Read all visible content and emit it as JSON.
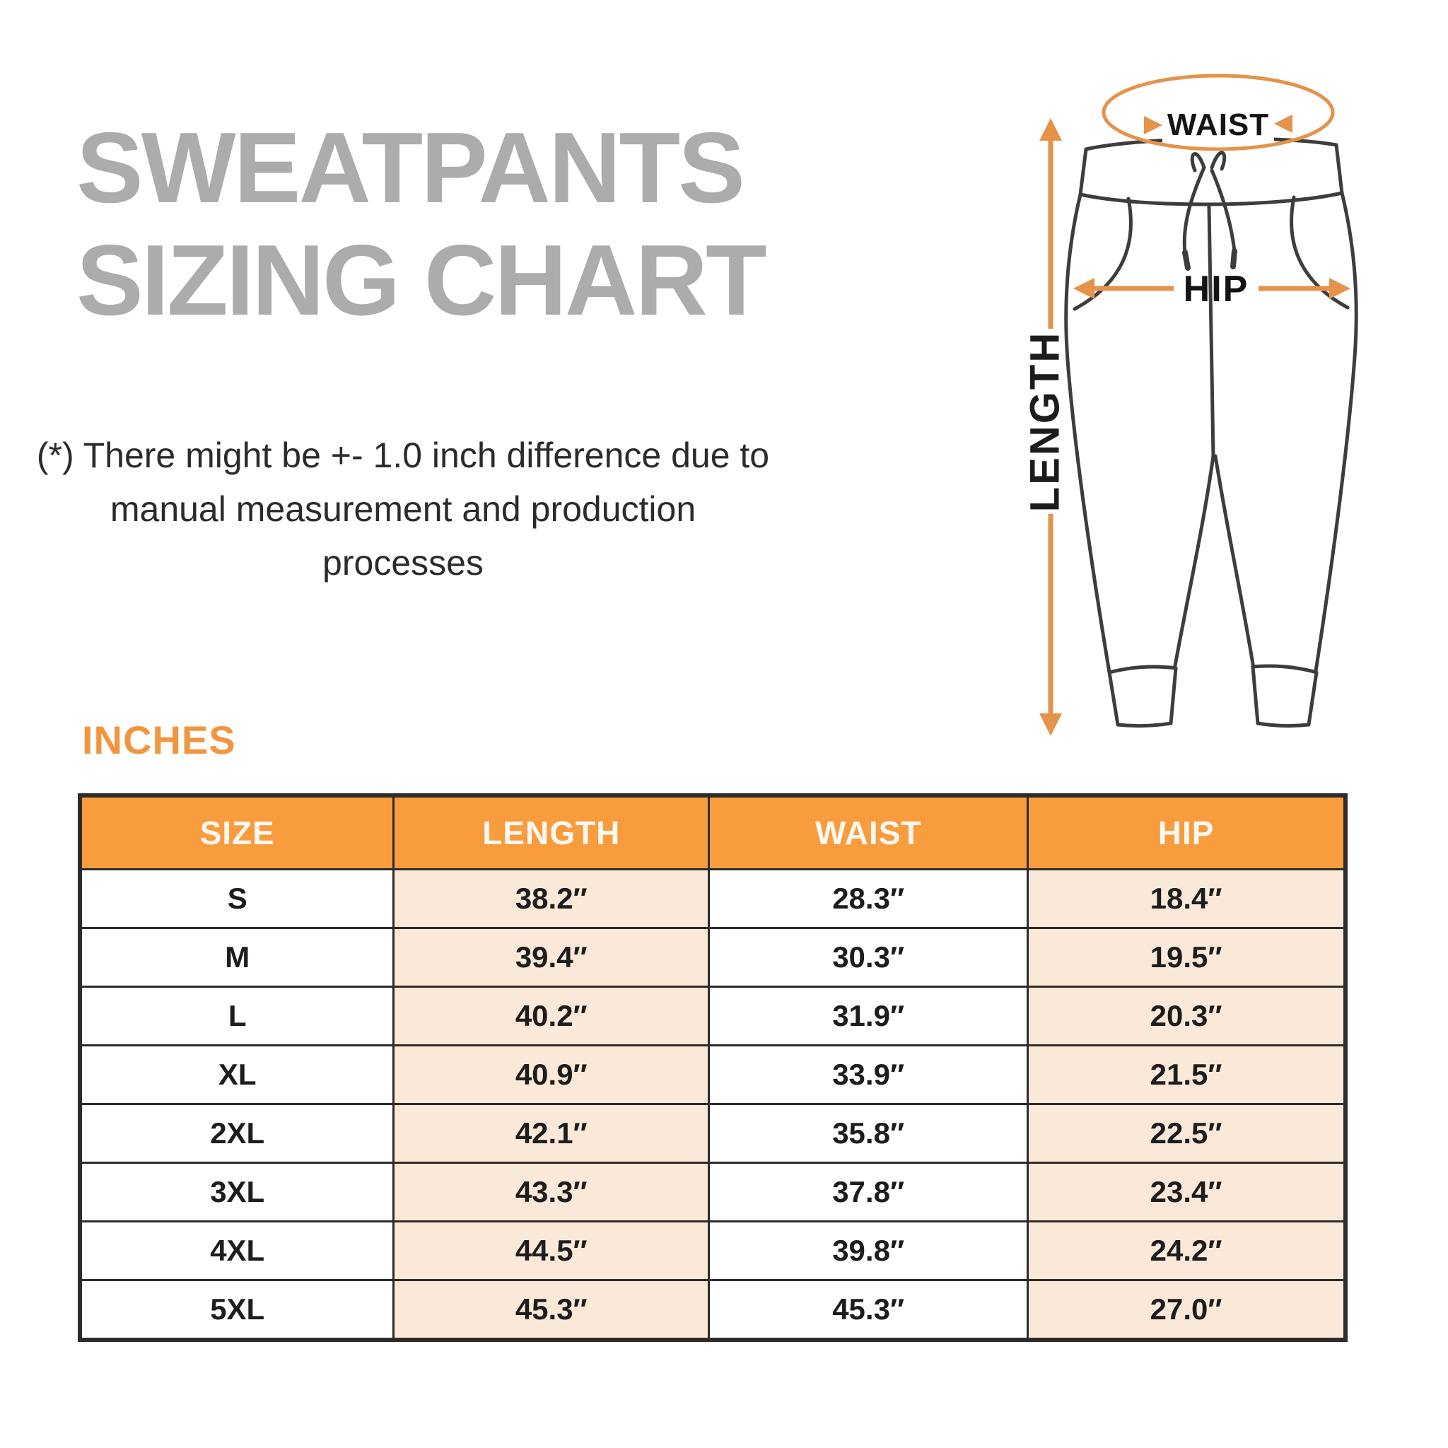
{
  "title": {
    "line1": "SWEATPANTS",
    "line2": "SIZING CHART",
    "color": "#ACACAC"
  },
  "disclaimer": {
    "line1": "(*) There might be +- 1.0 inch difference due to",
    "line2": "manual measurement and production processes"
  },
  "diagram": {
    "waist_label": "WAIST",
    "hip_label": "HIP",
    "length_label": "LENGTH",
    "arrow_color": "#E5924B",
    "outline_color": "#3D3D3D"
  },
  "units_label": "INCHES",
  "table": {
    "headers": [
      "SIZE",
      "LENGTH",
      "WAIST",
      "HIP"
    ],
    "header_bg": "#F89C3D",
    "alt_cell_bg": "#FAE8D9",
    "rows": [
      {
        "size": "S",
        "length": "38.2″",
        "waist": "28.3″",
        "hip": "18.4″"
      },
      {
        "size": "M",
        "length": "39.4″",
        "waist": "30.3″",
        "hip": "19.5″"
      },
      {
        "size": "L",
        "length": "40.2″",
        "waist": "31.9″",
        "hip": "20.3″"
      },
      {
        "size": "XL",
        "length": "40.9″",
        "waist": "33.9″",
        "hip": "21.5″"
      },
      {
        "size": "2XL",
        "length": "42.1″",
        "waist": "35.8″",
        "hip": "22.5″"
      },
      {
        "size": "3XL",
        "length": "43.3″",
        "waist": "37.8″",
        "hip": "23.4″"
      },
      {
        "size": "4XL",
        "length": "44.5″",
        "waist": "39.8″",
        "hip": "24.2″"
      },
      {
        "size": "5XL",
        "length": "45.3″",
        "waist": "45.3″",
        "hip": "27.0″"
      }
    ]
  },
  "chart_data": {
    "type": "table",
    "title": "SWEATPANTS SIZING CHART",
    "units": "INCHES",
    "columns": [
      "SIZE",
      "LENGTH",
      "WAIST",
      "HIP"
    ],
    "rows": [
      [
        "S",
        38.2,
        28.3,
        18.4
      ],
      [
        "M",
        39.4,
        30.3,
        19.5
      ],
      [
        "L",
        40.2,
        31.9,
        20.3
      ],
      [
        "XL",
        40.9,
        33.9,
        21.5
      ],
      [
        "2XL",
        42.1,
        35.8,
        22.5
      ],
      [
        "3XL",
        43.3,
        37.8,
        23.4
      ],
      [
        "4XL",
        44.5,
        39.8,
        24.2
      ],
      [
        "5XL",
        45.3,
        45.3,
        27.0
      ]
    ]
  }
}
